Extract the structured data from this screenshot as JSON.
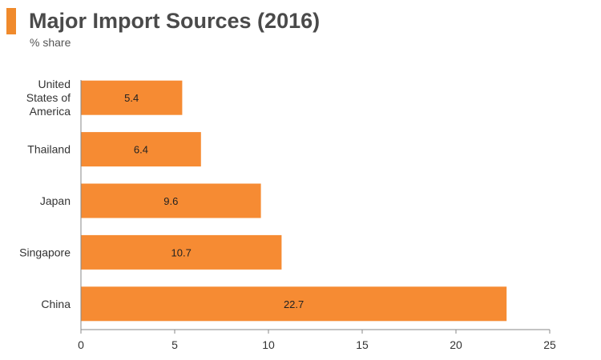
{
  "header": {
    "title": "Major Import Sources (2016)",
    "subtitle": "% share"
  },
  "colors": {
    "accent": "#f08a2c",
    "bar": "#f68b33",
    "axis": "#8a8a8a"
  },
  "chart_data": {
    "type": "bar",
    "orientation": "horizontal",
    "title": "Major Import Sources (2016)",
    "subtitle": "% share",
    "categories": [
      "United States of America",
      "Thailand",
      "Japan",
      "Singapore",
      "China"
    ],
    "category_lines": [
      [
        "United",
        "States of",
        "America"
      ],
      [
        "Thailand"
      ],
      [
        "Japan"
      ],
      [
        "Singapore"
      ],
      [
        "China"
      ]
    ],
    "values": [
      5.4,
      6.4,
      9.6,
      10.7,
      22.7
    ],
    "data_labels": [
      "5.4",
      "6.4",
      "9.6",
      "10.7",
      "22.7"
    ],
    "xlim": [
      0,
      25
    ],
    "xticks": [
      0,
      5,
      10,
      15,
      20,
      25
    ],
    "xtick_labels": [
      "0",
      "5",
      "10",
      "15",
      "20",
      "25"
    ],
    "grid": false,
    "legend": "none"
  }
}
